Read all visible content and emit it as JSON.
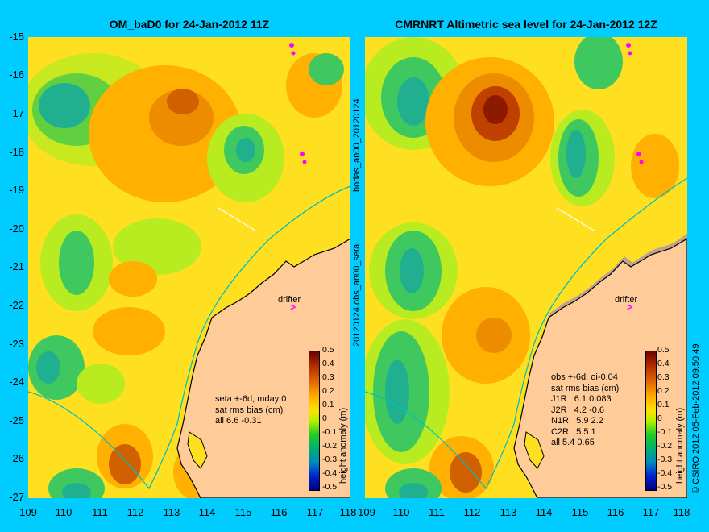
{
  "colors": {
    "background": "#00ccff",
    "land": "#ffcc99",
    "coastline": "#000000",
    "bathymetry_contour": "#00c0c0"
  },
  "panels": [
    {
      "id": "left",
      "title": "OM_baD0 for 24-Jan-2012 11Z",
      "stats_lines": [
        "seta +-6d, mday 0",
        "sat rms bias (cm)",
        "all 6.6 -0.31"
      ],
      "drifter_label": "drifter"
    },
    {
      "id": "right",
      "title": "CMRNRT Altimetric sea level  for 24-Jan-2012 12Z",
      "stats_lines": [
        "obs +-6d, oi-0.04",
        "sat rms bias (cm)",
        "J1R   6.1 0.083",
        "J2R   4.2 -0.6",
        "N1R   5.9 2.2",
        "C2R   5.5 1",
        "all 5.4 0.65"
      ],
      "drifter_label": "drifter"
    }
  ],
  "side_labels": {
    "left_top": "bodas_an00_20120124",
    "left_bottom": "20120124.obs_an00_seta"
  },
  "axes": {
    "lat_ticks": [
      "-15",
      "-16",
      "-17",
      "-18",
      "-19",
      "-20",
      "-21",
      "-22",
      "-23",
      "-24",
      "-25",
      "-26",
      "-27"
    ],
    "lon_ticks": [
      "109",
      "110",
      "111",
      "112",
      "113",
      "114",
      "115",
      "116",
      "117",
      "118"
    ],
    "lat_range": [
      -27,
      -15
    ],
    "lon_range": [
      109,
      118
    ]
  },
  "colorbar": {
    "ticks": [
      "0.5",
      "0.4",
      "0.3",
      "0.2",
      "0.1",
      "0",
      "-0.1",
      "-0.2",
      "-0.3",
      "-0.4",
      "-0.5"
    ],
    "label": "height anomaly (m)"
  },
  "copyright": "© CSIRO 2012   05-Feb-2012 09:50:49"
}
